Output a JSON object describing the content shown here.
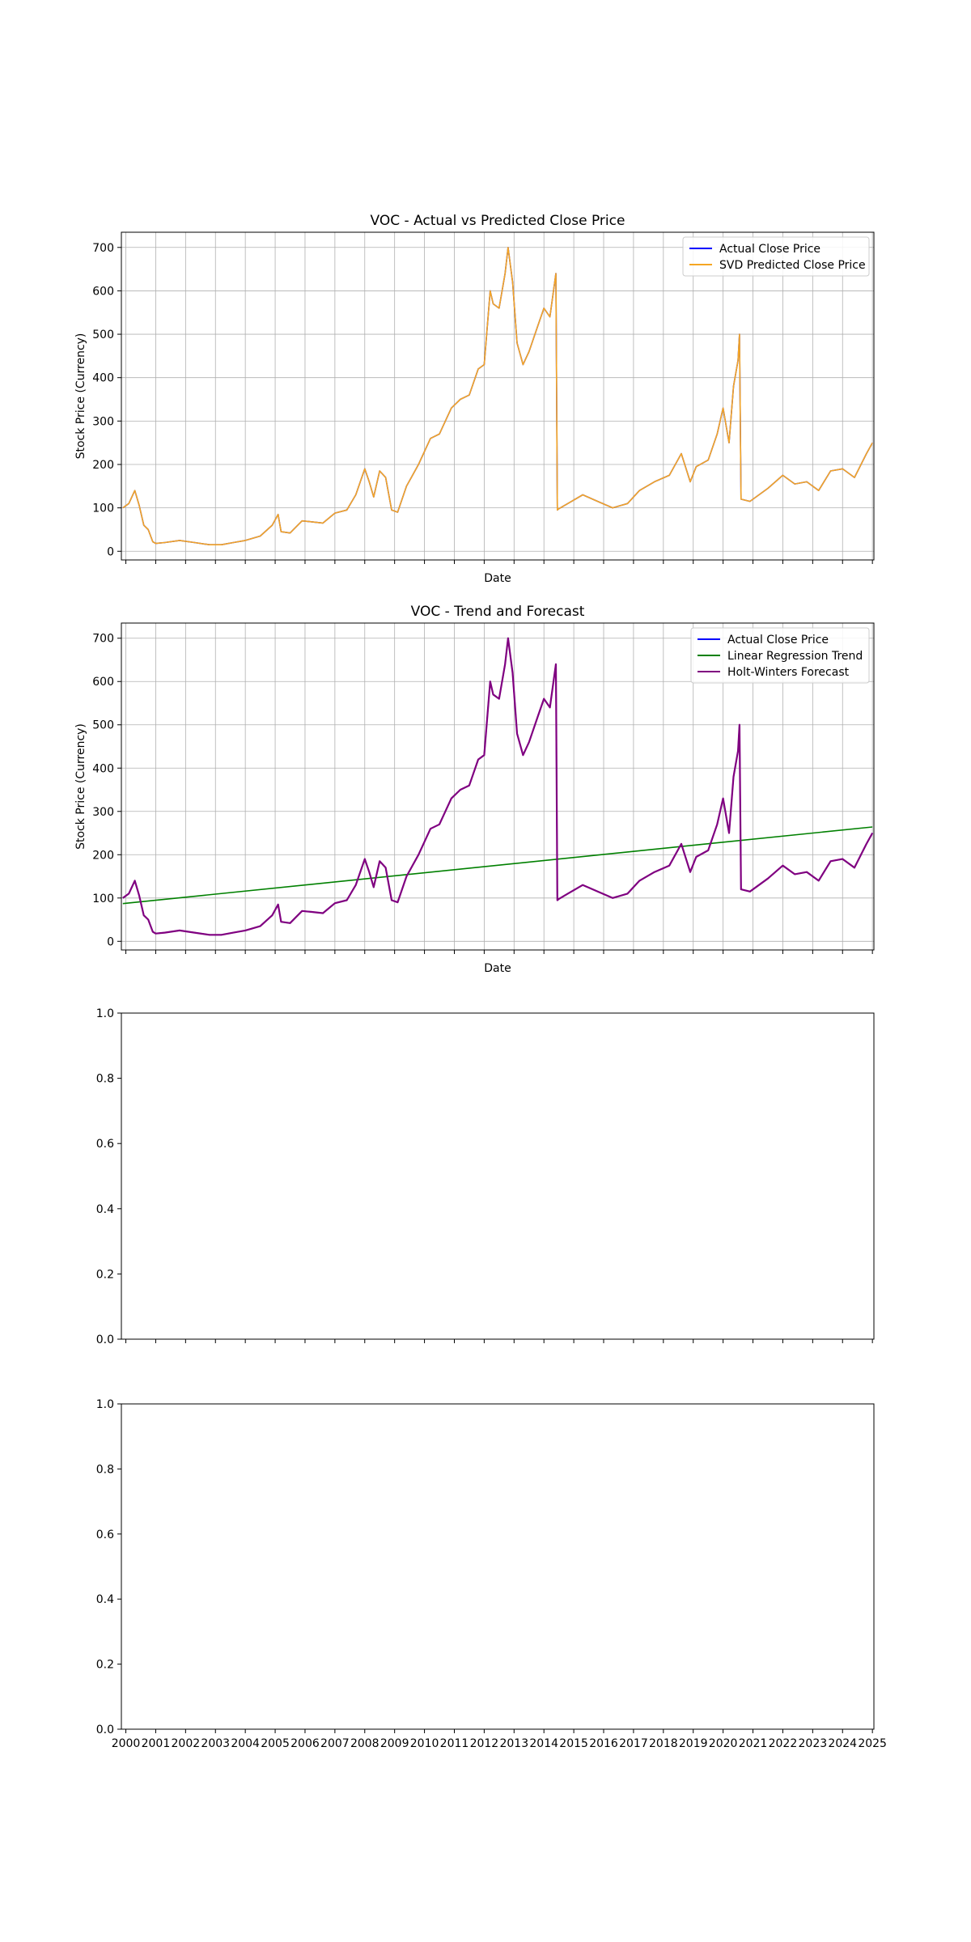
{
  "chart_data": [
    {
      "type": "line",
      "title": "VOC - Actual vs Predicted Close Price",
      "xlabel": "Date",
      "ylabel": "Stock Price (Currency)",
      "xlim": [
        1999.85,
        2025.05
      ],
      "ylim": [
        -20,
        735
      ],
      "yticks": [
        0,
        100,
        200,
        300,
        400,
        500,
        600,
        700
      ],
      "xtick_labels_shown": false,
      "grid": true,
      "legend": "top-right",
      "series": [
        {
          "name": "Actual Close Price",
          "color": "#0000ff",
          "x": [
            1999.9,
            2000.1,
            2000.3,
            2000.45,
            2000.6,
            2000.75,
            2000.9,
            2001.0,
            2001.3,
            2001.8,
            2002.3,
            2002.8,
            2003.2,
            2003.6,
            2004.0,
            2004.5,
            2004.9,
            2005.1,
            2005.2,
            2005.5,
            2005.9,
            2006.2,
            2006.6,
            2007.0,
            2007.4,
            2007.7,
            2008.0,
            2008.15,
            2008.3,
            2008.5,
            2008.7,
            2008.9,
            2009.1,
            2009.4,
            2009.8,
            2010.2,
            2010.5,
            2010.9,
            2011.2,
            2011.5,
            2011.8,
            2012.0,
            2012.2,
            2012.3,
            2012.5,
            2012.7,
            2012.8,
            2012.95,
            2013.1,
            2013.3,
            2013.5,
            2013.8,
            2014.0,
            2014.2,
            2014.4,
            2014.45,
            2014.5,
            2014.8,
            2015.3,
            2015.8,
            2016.3,
            2016.8,
            2017.2,
            2017.7,
            2018.2,
            2018.6,
            2018.9,
            2019.1,
            2019.5,
            2019.8,
            2020.0,
            2020.2,
            2020.35,
            2020.5,
            2020.55,
            2020.6,
            2020.9,
            2021.5,
            2022.0,
            2022.4,
            2022.8,
            2023.2,
            2023.6,
            2024.0,
            2024.4,
            2024.8,
            2025.0
          ],
          "values": [
            100,
            110,
            140,
            105,
            60,
            50,
            22,
            18,
            20,
            25,
            20,
            15,
            15,
            20,
            25,
            35,
            60,
            85,
            45,
            42,
            70,
            68,
            65,
            88,
            95,
            130,
            190,
            160,
            125,
            185,
            170,
            95,
            90,
            150,
            200,
            260,
            270,
            330,
            350,
            360,
            420,
            430,
            600,
            570,
            560,
            640,
            700,
            620,
            480,
            430,
            460,
            520,
            560,
            540,
            640,
            95,
            98,
            110,
            130,
            115,
            100,
            110,
            140,
            160,
            175,
            225,
            160,
            195,
            210,
            270,
            330,
            250,
            380,
            440,
            500,
            120,
            115,
            145,
            175,
            155,
            160,
            140,
            185,
            190,
            170,
            225,
            250
          ]
        },
        {
          "name": "SVD Predicted Close Price",
          "color": "#f5a623",
          "x": [
            1999.9,
            2000.1,
            2000.3,
            2000.45,
            2000.6,
            2000.75,
            2000.9,
            2001.0,
            2001.3,
            2001.8,
            2002.3,
            2002.8,
            2003.2,
            2003.6,
            2004.0,
            2004.5,
            2004.9,
            2005.1,
            2005.2,
            2005.5,
            2005.9,
            2006.2,
            2006.6,
            2007.0,
            2007.4,
            2007.7,
            2008.0,
            2008.15,
            2008.3,
            2008.5,
            2008.7,
            2008.9,
            2009.1,
            2009.4,
            2009.8,
            2010.2,
            2010.5,
            2010.9,
            2011.2,
            2011.5,
            2011.8,
            2012.0,
            2012.2,
            2012.3,
            2012.5,
            2012.7,
            2012.8,
            2012.95,
            2013.1,
            2013.3,
            2013.5,
            2013.8,
            2014.0,
            2014.2,
            2014.4,
            2014.45,
            2014.5,
            2014.8,
            2015.3,
            2015.8,
            2016.3,
            2016.8,
            2017.2,
            2017.7,
            2018.2,
            2018.6,
            2018.9,
            2019.1,
            2019.5,
            2019.8,
            2020.0,
            2020.2,
            2020.35,
            2020.5,
            2020.55,
            2020.6,
            2020.9,
            2021.5,
            2022.0,
            2022.4,
            2022.8,
            2023.2,
            2023.6,
            2024.0,
            2024.4,
            2024.8,
            2025.0
          ],
          "values": [
            100,
            110,
            140,
            105,
            60,
            50,
            22,
            18,
            20,
            25,
            20,
            15,
            15,
            20,
            25,
            35,
            60,
            85,
            45,
            42,
            70,
            68,
            65,
            88,
            95,
            130,
            190,
            160,
            125,
            185,
            170,
            95,
            90,
            150,
            200,
            260,
            270,
            330,
            350,
            360,
            420,
            430,
            600,
            570,
            560,
            640,
            700,
            620,
            480,
            430,
            460,
            520,
            560,
            540,
            640,
            95,
            98,
            110,
            130,
            115,
            100,
            110,
            140,
            160,
            175,
            225,
            160,
            195,
            210,
            270,
            330,
            250,
            380,
            440,
            500,
            120,
            115,
            145,
            175,
            155,
            160,
            140,
            185,
            190,
            170,
            225,
            250
          ]
        }
      ]
    },
    {
      "type": "line",
      "title": "VOC - Trend and Forecast",
      "xlabel": "Date",
      "ylabel": "Stock Price (Currency)",
      "xlim": [
        1999.85,
        2025.05
      ],
      "ylim": [
        -20,
        735
      ],
      "yticks": [
        0,
        100,
        200,
        300,
        400,
        500,
        600,
        700
      ],
      "xtick_labels_shown": false,
      "grid": true,
      "legend": "top-right",
      "series": [
        {
          "name": "Actual Close Price",
          "color": "#0000ff",
          "x": [
            1999.9,
            2000.1,
            2000.3,
            2000.45,
            2000.6,
            2000.75,
            2000.9,
            2001.0,
            2001.3,
            2001.8,
            2002.3,
            2002.8,
            2003.2,
            2003.6,
            2004.0,
            2004.5,
            2004.9,
            2005.1,
            2005.2,
            2005.5,
            2005.9,
            2006.2,
            2006.6,
            2007.0,
            2007.4,
            2007.7,
            2008.0,
            2008.15,
            2008.3,
            2008.5,
            2008.7,
            2008.9,
            2009.1,
            2009.4,
            2009.8,
            2010.2,
            2010.5,
            2010.9,
            2011.2,
            2011.5,
            2011.8,
            2012.0,
            2012.2,
            2012.3,
            2012.5,
            2012.7,
            2012.8,
            2012.95,
            2013.1,
            2013.3,
            2013.5,
            2013.8,
            2014.0,
            2014.2,
            2014.4,
            2014.45,
            2014.5,
            2014.8,
            2015.3,
            2015.8,
            2016.3,
            2016.8,
            2017.2,
            2017.7,
            2018.2,
            2018.6,
            2018.9,
            2019.1,
            2019.5,
            2019.8,
            2020.0,
            2020.2,
            2020.35,
            2020.5,
            2020.55,
            2020.6,
            2020.9,
            2021.5,
            2022.0,
            2022.4,
            2022.8,
            2023.2,
            2023.6,
            2024.0,
            2024.4,
            2024.8,
            2025.0
          ],
          "values": [
            100,
            110,
            140,
            105,
            60,
            50,
            22,
            18,
            20,
            25,
            20,
            15,
            15,
            20,
            25,
            35,
            60,
            85,
            45,
            42,
            70,
            68,
            65,
            88,
            95,
            130,
            190,
            160,
            125,
            185,
            170,
            95,
            90,
            150,
            200,
            260,
            270,
            330,
            350,
            360,
            420,
            430,
            600,
            570,
            560,
            640,
            700,
            620,
            480,
            430,
            460,
            520,
            560,
            540,
            640,
            95,
            98,
            110,
            130,
            115,
            100,
            110,
            140,
            160,
            175,
            225,
            160,
            195,
            210,
            270,
            330,
            250,
            380,
            440,
            500,
            120,
            115,
            145,
            175,
            155,
            160,
            140,
            185,
            190,
            170,
            225,
            250
          ]
        },
        {
          "name": "Linear Regression Trend",
          "color": "#008000",
          "x": [
            1999.9,
            2025.0
          ],
          "values": [
            87,
            264
          ]
        },
        {
          "name": "Holt-Winters Forecast",
          "color": "#800080",
          "x": [
            1999.9,
            2000.1,
            2000.3,
            2000.45,
            2000.6,
            2000.75,
            2000.9,
            2001.0,
            2001.3,
            2001.8,
            2002.3,
            2002.8,
            2003.2,
            2003.6,
            2004.0,
            2004.5,
            2004.9,
            2005.1,
            2005.2,
            2005.5,
            2005.9,
            2006.2,
            2006.6,
            2007.0,
            2007.4,
            2007.7,
            2008.0,
            2008.15,
            2008.3,
            2008.5,
            2008.7,
            2008.9,
            2009.1,
            2009.4,
            2009.8,
            2010.2,
            2010.5,
            2010.9,
            2011.2,
            2011.5,
            2011.8,
            2012.0,
            2012.2,
            2012.3,
            2012.5,
            2012.7,
            2012.8,
            2012.95,
            2013.1,
            2013.3,
            2013.5,
            2013.8,
            2014.0,
            2014.2,
            2014.4,
            2014.45,
            2014.5,
            2014.8,
            2015.3,
            2015.8,
            2016.3,
            2016.8,
            2017.2,
            2017.7,
            2018.2,
            2018.6,
            2018.9,
            2019.1,
            2019.5,
            2019.8,
            2020.0,
            2020.2,
            2020.35,
            2020.5,
            2020.55,
            2020.6,
            2020.9,
            2021.5,
            2022.0,
            2022.4,
            2022.8,
            2023.2,
            2023.6,
            2024.0,
            2024.4,
            2024.8,
            2025.0
          ],
          "values": [
            100,
            110,
            140,
            105,
            60,
            50,
            22,
            18,
            20,
            25,
            20,
            15,
            15,
            20,
            25,
            35,
            60,
            85,
            45,
            42,
            70,
            68,
            65,
            88,
            95,
            130,
            190,
            160,
            125,
            185,
            170,
            95,
            90,
            150,
            200,
            260,
            270,
            330,
            350,
            360,
            420,
            430,
            600,
            570,
            560,
            640,
            700,
            620,
            480,
            430,
            460,
            520,
            560,
            540,
            640,
            95,
            98,
            110,
            130,
            115,
            100,
            110,
            140,
            160,
            175,
            225,
            160,
            195,
            210,
            270,
            330,
            250,
            380,
            440,
            500,
            120,
            115,
            145,
            175,
            155,
            160,
            140,
            185,
            190,
            170,
            225,
            250
          ]
        }
      ]
    },
    {
      "type": "line",
      "title": "",
      "xlabel": "",
      "ylabel": "",
      "xlim": [
        1999.85,
        2025.05
      ],
      "ylim": [
        0,
        1
      ],
      "yticks": [
        0.0,
        0.2,
        0.4,
        0.6,
        0.8,
        1.0
      ],
      "ytick_labels": [
        "0.0",
        "0.2",
        "0.4",
        "0.6",
        "0.8",
        "1.0"
      ],
      "xtick_labels_shown": false,
      "grid": false,
      "series": []
    },
    {
      "type": "line",
      "title": "",
      "xlabel": "",
      "ylabel": "",
      "xlim": [
        1999.85,
        2025.05
      ],
      "ylim": [
        0,
        1
      ],
      "yticks": [
        0.0,
        0.2,
        0.4,
        0.6,
        0.8,
        1.0
      ],
      "ytick_labels": [
        "0.0",
        "0.2",
        "0.4",
        "0.6",
        "0.8",
        "1.0"
      ],
      "xticks": [
        2000,
        2001,
        2002,
        2003,
        2004,
        2005,
        2006,
        2007,
        2008,
        2009,
        2010,
        2011,
        2012,
        2013,
        2014,
        2015,
        2016,
        2017,
        2018,
        2019,
        2020,
        2021,
        2022,
        2023,
        2024,
        2025
      ],
      "xtick_labels": [
        "2000",
        "2001",
        "2002",
        "2003",
        "2004",
        "2005",
        "2006",
        "2007",
        "2008",
        "2009",
        "2010",
        "2011",
        "2012",
        "2013",
        "2014",
        "2015",
        "2016",
        "2017",
        "2018",
        "2019",
        "2020",
        "2021",
        "2022",
        "2023",
        "2024",
        "2025"
      ],
      "xtick_labels_shown": true,
      "grid": false,
      "series": []
    }
  ]
}
